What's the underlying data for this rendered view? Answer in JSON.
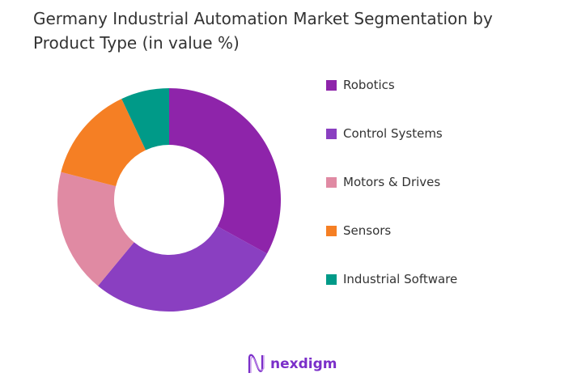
{
  "chart_data": {
    "type": "pie",
    "donut": true,
    "title": "Germany Industrial Automation Market Segmentation by Product Type (in value %)",
    "categories": [
      "Robotics",
      "Control Systems",
      "Motors & Drives",
      "Sensors",
      "Industrial Software"
    ],
    "values": [
      33,
      28,
      18,
      14,
      7
    ],
    "colors": [
      "#8e24aa",
      "#8a3fc1",
      "#e08aa3",
      "#f57f24",
      "#009a88"
    ],
    "legend_position": "right"
  },
  "logo": {
    "text": "nexdigm",
    "color": "#7b2fc9"
  }
}
